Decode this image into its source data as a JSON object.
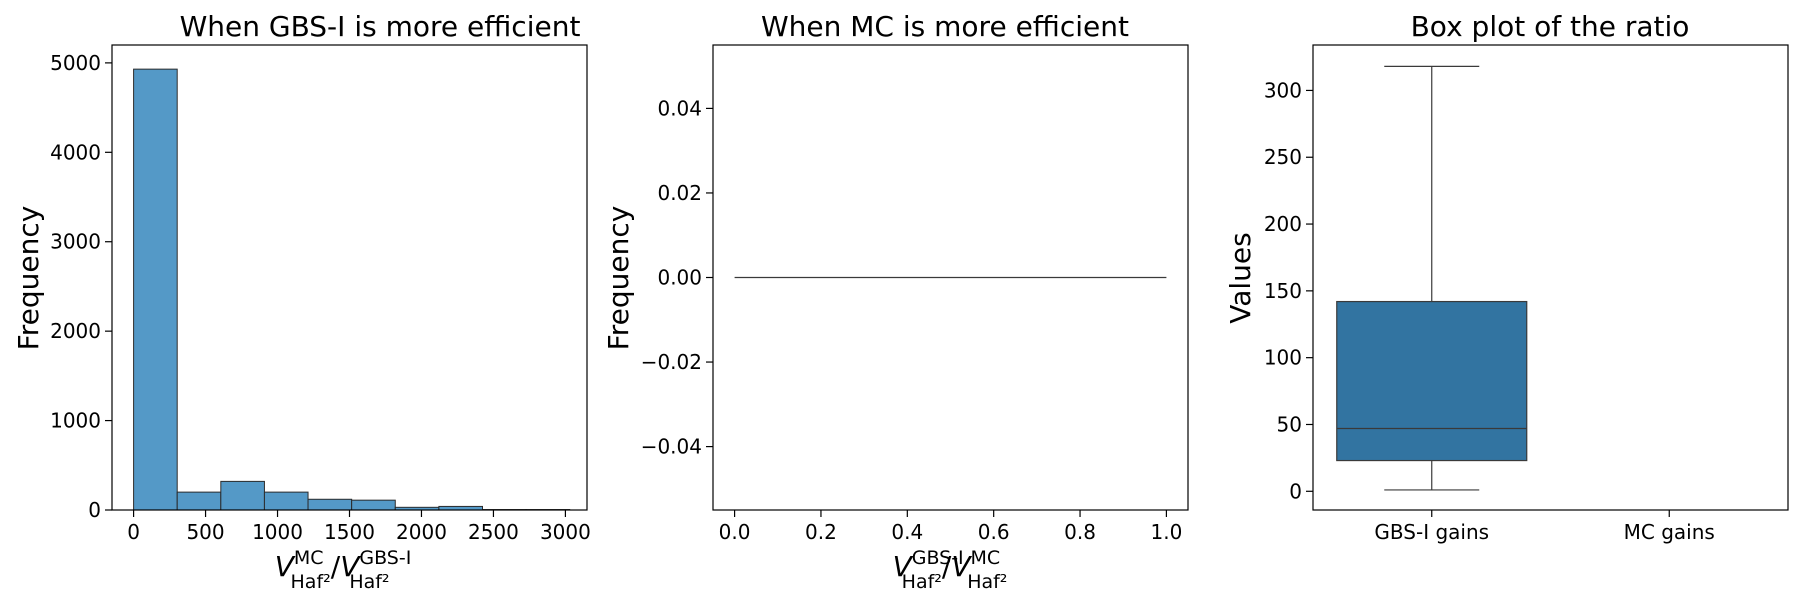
{
  "chart_data": [
    {
      "type": "bar",
      "title": "When GBS-I is more efficient",
      "ylabel": "Frequency",
      "xlabel": {
        "a_var": "V",
        "a_sup": "MC",
        "a_sub": "Haf²",
        "slash": "/",
        "b_var": "V",
        "b_sup": "GBS-I",
        "b_sub": "Haf²"
      },
      "xlim": [
        -150,
        3150
      ],
      "ylim": [
        0,
        5200
      ],
      "xticks": [
        0,
        500,
        1000,
        1500,
        2000,
        2500,
        3000
      ],
      "yticks": [
        0,
        1000,
        2000,
        3000,
        4000,
        5000
      ],
      "bin_edges": [
        0,
        303,
        606,
        909,
        1212,
        1515,
        1818,
        2121,
        2424,
        2727,
        3030
      ],
      "values": [
        4930,
        200,
        320,
        200,
        120,
        110,
        30,
        40,
        5,
        5
      ],
      "color": "#5499c7",
      "edgecolor": "#2b2b2b"
    },
    {
      "type": "bar",
      "title": "When MC is more efficient",
      "ylabel": "Frequency",
      "xlabel": {
        "a_var": "V",
        "a_sup": "GBS-I",
        "a_sub": "Haf²",
        "slash": "/",
        "b_var": "V",
        "b_sup": "MC",
        "b_sub": "Haf²"
      },
      "xlim": [
        -0.05,
        1.05
      ],
      "ylim": [
        -0.055,
        0.055
      ],
      "xticks": [
        0.0,
        0.2,
        0.4,
        0.6,
        0.8,
        1.0
      ],
      "xtick_labels": [
        "0.0",
        "0.2",
        "0.4",
        "0.6",
        "0.8",
        "1.0"
      ],
      "yticks": [
        -0.04,
        -0.02,
        0.0,
        0.02,
        0.04
      ],
      "ytick_labels": [
        "−0.04",
        "−0.02",
        "0.00",
        "0.02",
        "0.04"
      ],
      "flat_line": {
        "x": [
          0.0,
          1.0
        ],
        "y": 0.0
      }
    },
    {
      "type": "box",
      "title": "Box plot of the ratio",
      "ylabel": "Values",
      "categories": [
        "GBS-I gains",
        "MC gains"
      ],
      "ylim": [
        -14,
        334
      ],
      "yticks": [
        0,
        50,
        100,
        150,
        200,
        250,
        300
      ],
      "boxes": [
        {
          "category": "GBS-I gains",
          "whisker_low": 1,
          "q1": 23,
          "median": 47,
          "q3": 142,
          "whisker_high": 318
        }
      ],
      "color": "#3274a1",
      "edgecolor": "#3a3a3a"
    }
  ]
}
